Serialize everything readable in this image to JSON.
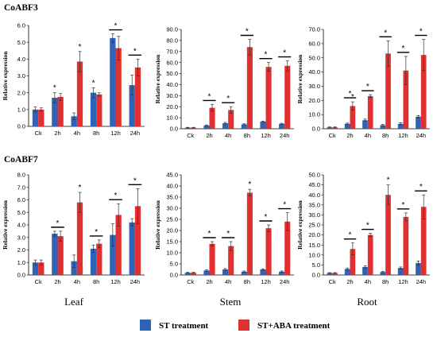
{
  "gene_labels": [
    "CoABF3",
    "CoABF7"
  ],
  "tissue_labels": [
    "Leaf",
    "Stem",
    "Root"
  ],
  "legend": [
    {
      "label": "ST treatment",
      "color": "#2e63b8"
    },
    {
      "label": "ST+ABA treatment",
      "color": "#e03030"
    }
  ],
  "colors": {
    "st": "#2e63b8",
    "st_aba": "#e03030"
  },
  "chart_data": [
    {
      "type": "bar",
      "gene": "CoABF3",
      "tissue": "Leaf",
      "categories": [
        "Ck",
        "2h",
        "4h",
        "8h",
        "12h",
        "24h"
      ],
      "ylabel": "Relative expression",
      "ylim": [
        0,
        6
      ],
      "ytick_step": 1,
      "ytick_decimals": 1,
      "series": [
        {
          "name": "ST treatment",
          "values": [
            1.0,
            1.7,
            0.6,
            2.0,
            5.25,
            2.45
          ],
          "errors": [
            0.15,
            0.3,
            0.2,
            0.3,
            0.25,
            0.6
          ]
        },
        {
          "name": "ST+ABA treatment",
          "values": [
            1.0,
            1.75,
            3.85,
            1.9,
            4.65,
            3.5
          ],
          "errors": [
            0.1,
            0.2,
            0.6,
            0.1,
            0.7,
            0.5
          ]
        }
      ],
      "stars": [
        {
          "index": 1,
          "bracket": false
        },
        {
          "index": 2,
          "bracket": false
        },
        {
          "index": 3,
          "bracket": false
        },
        {
          "index": 4,
          "bracket": true
        },
        {
          "index": 5,
          "bracket": true
        }
      ]
    },
    {
      "type": "bar",
      "gene": "CoABF3",
      "tissue": "Stem",
      "categories": [
        "Ck",
        "2h",
        "4h",
        "8h",
        "12h",
        "24h"
      ],
      "ylabel": "Relative expression",
      "ylim": [
        0,
        90
      ],
      "ytick_step": 10,
      "ytick_decimals": 1,
      "series": [
        {
          "name": "ST treatment",
          "values": [
            1.0,
            3.0,
            5.0,
            4.0,
            6.5,
            4.5
          ],
          "errors": [
            0.3,
            0.5,
            0.8,
            0.5,
            0.5,
            0.5
          ]
        },
        {
          "name": "ST+ABA treatment",
          "values": [
            1.0,
            19.0,
            17.0,
            74.0,
            56.0,
            57.0
          ],
          "errors": [
            0.3,
            3.0,
            3.0,
            7.0,
            4.0,
            4.5
          ]
        }
      ],
      "stars": [
        {
          "index": 1,
          "bracket": true
        },
        {
          "index": 2,
          "bracket": true
        },
        {
          "index": 3,
          "bracket": true
        },
        {
          "index": 4,
          "bracket": true
        },
        {
          "index": 5,
          "bracket": true
        }
      ]
    },
    {
      "type": "bar",
      "gene": "CoABF3",
      "tissue": "Root",
      "categories": [
        "Ck",
        "2h",
        "4h",
        "8h",
        "12h",
        "24h"
      ],
      "ylabel": "Relative expression",
      "ylim": [
        0,
        70
      ],
      "ytick_step": 10,
      "ytick_decimals": 1,
      "series": [
        {
          "name": "ST treatment",
          "values": [
            1.0,
            3.5,
            6.0,
            2.5,
            3.5,
            8.5
          ],
          "errors": [
            0.3,
            0.5,
            0.8,
            0.5,
            0.8,
            0.8
          ]
        },
        {
          "name": "ST+ABA treatment",
          "values": [
            1.0,
            16.0,
            23.0,
            53.0,
            41.0,
            52.0
          ],
          "errors": [
            0.3,
            3.0,
            1.0,
            9.0,
            10.0,
            11.0
          ]
        }
      ],
      "stars": [
        {
          "index": 1,
          "bracket": false
        },
        {
          "index": 1,
          "bracket": true
        },
        {
          "index": 2,
          "bracket": true
        },
        {
          "index": 3,
          "bracket": true
        },
        {
          "index": 4,
          "bracket": true
        },
        {
          "index": 5,
          "bracket": true
        }
      ]
    },
    {
      "type": "bar",
      "gene": "CoABF7",
      "tissue": "Leaf",
      "categories": [
        "Ck",
        "2h",
        "4h",
        "8h",
        "12h",
        "24h"
      ],
      "ylabel": "Relative expression",
      "ylim": [
        0,
        8
      ],
      "ytick_step": 1,
      "ytick_decimals": 1,
      "series": [
        {
          "name": "ST treatment",
          "values": [
            1.0,
            3.3,
            1.1,
            2.1,
            3.2,
            4.2
          ],
          "errors": [
            0.2,
            0.2,
            0.5,
            0.3,
            0.9,
            0.3
          ]
        },
        {
          "name": "ST+ABA treatment",
          "values": [
            1.0,
            3.1,
            5.8,
            2.5,
            4.8,
            5.5
          ],
          "errors": [
            0.2,
            0.4,
            0.8,
            0.3,
            0.9,
            1.4
          ]
        }
      ],
      "stars": [
        {
          "index": 1,
          "bracket": true
        },
        {
          "index": 2,
          "bracket": false
        },
        {
          "index": 3,
          "bracket": true
        },
        {
          "index": 4,
          "bracket": true
        },
        {
          "index": 5,
          "bracket": true
        }
      ]
    },
    {
      "type": "bar",
      "gene": "CoABF7",
      "tissue": "Stem",
      "categories": [
        "Ck",
        "2h",
        "4h",
        "8h",
        "12h",
        "24h"
      ],
      "ylabel": "Relative expression",
      "ylim": [
        0,
        45
      ],
      "ytick_step": 5,
      "ytick_decimals": 1,
      "series": [
        {
          "name": "ST treatment",
          "values": [
            1.0,
            2.0,
            2.5,
            1.5,
            2.5,
            1.5
          ],
          "errors": [
            0.2,
            0.3,
            0.4,
            0.3,
            0.3,
            0.3
          ]
        },
        {
          "name": "ST+ABA treatment",
          "values": [
            1.0,
            14.0,
            13.0,
            37.0,
            21.0,
            24.0
          ],
          "errors": [
            0.2,
            1.0,
            2.0,
            1.5,
            1.5,
            4.0
          ]
        }
      ],
      "stars": [
        {
          "index": 1,
          "bracket": true
        },
        {
          "index": 2,
          "bracket": true
        },
        {
          "index": 3,
          "bracket": false
        },
        {
          "index": 4,
          "bracket": true
        },
        {
          "index": 5,
          "bracket": true
        }
      ]
    },
    {
      "type": "bar",
      "gene": "CoABF7",
      "tissue": "Root",
      "categories": [
        "Ck",
        "2h",
        "4h",
        "8h",
        "12h",
        "24h"
      ],
      "ylabel": "Relative expression",
      "ylim": [
        0,
        50
      ],
      "ytick_step": 5,
      "ytick_decimals": 1,
      "series": [
        {
          "name": "ST treatment",
          "values": [
            1.0,
            3.0,
            4.0,
            1.5,
            3.5,
            6.0
          ],
          "errors": [
            0.2,
            0.5,
            0.5,
            0.3,
            0.5,
            1.0
          ]
        },
        {
          "name": "ST+ABA treatment",
          "values": [
            1.0,
            13.0,
            20.0,
            40.0,
            29.0,
            34.0
          ],
          "errors": [
            0.2,
            3.0,
            0.8,
            5.0,
            2.0,
            6.0
          ]
        }
      ],
      "stars": [
        {
          "index": 1,
          "bracket": true
        },
        {
          "index": 2,
          "bracket": true
        },
        {
          "index": 3,
          "bracket": false
        },
        {
          "index": 4,
          "bracket": true
        },
        {
          "index": 5,
          "bracket": true
        }
      ]
    }
  ]
}
